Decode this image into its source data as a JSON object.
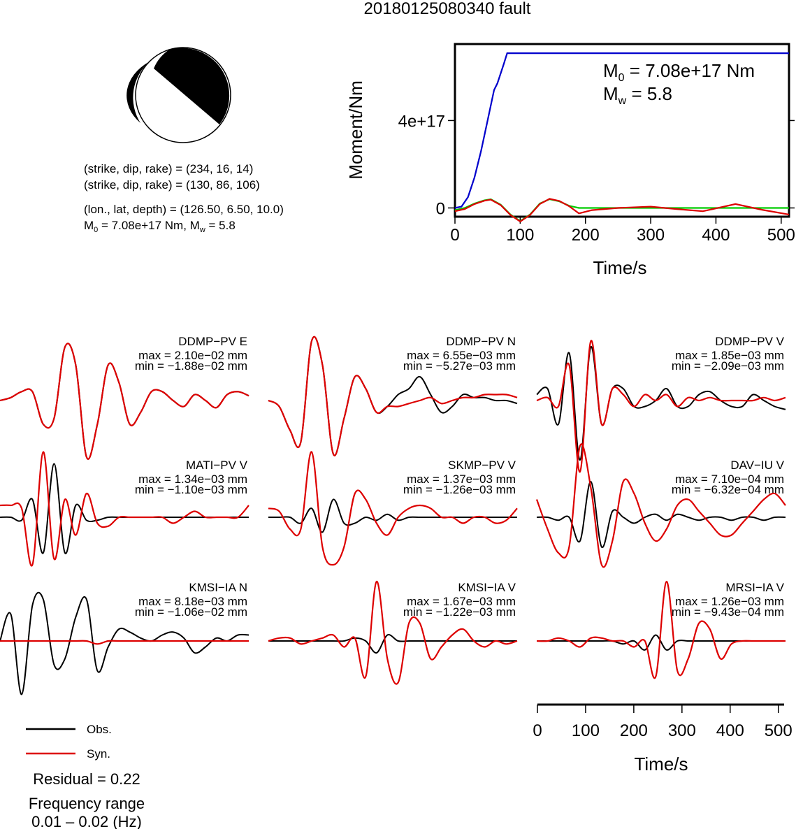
{
  "title": "20180125080340 fault",
  "focal": {
    "line1": "(strike, dip, rake) = (234, 16, 14)",
    "line2": "(strike, dip, rake) = (130, 86, 106)",
    "line3": "(lon., lat, depth) = (126.50, 6.50, 10.0)",
    "m0_prefix": "M",
    "m0_sub": "0",
    "m0_mid": " = 7.08e+17 Nm, M",
    "mw_sub": "w",
    "mw_suffix": " = 5.8"
  },
  "moment_plot": {
    "ylabel": "Moment/Nm",
    "xlabel": "Time/s",
    "m0_prefix": "M",
    "m0_sub": "0",
    "m0_value": " = 7.08e+17 Nm",
    "mw_prefix": "M",
    "mw_sub": "w",
    "mw_value": " = 5.8"
  },
  "chart_data": [
    {
      "type": "line",
      "xlabel": "Time/s",
      "ylabel": "Moment/Nm",
      "xlim": [
        0,
        512
      ],
      "ylim": [
        -4e+16,
        7.5e+17
      ],
      "xticks": [
        0,
        100,
        200,
        300,
        400,
        500
      ],
      "yticks": [
        {
          "value": 0,
          "label": "0"
        },
        {
          "value": 4e+17,
          "label": "4e+17"
        }
      ],
      "series": [
        {
          "color": "#0000cc",
          "x": [
            0,
            10,
            20,
            30,
            40,
            50,
            60,
            65,
            75,
            80,
            512
          ],
          "y": [
            0,
            6000000000000000.0,
            5e+16,
            1.4e+17,
            2.6e+17,
            4e+17,
            5.4e+17,
            5.7e+17,
            6.6e+17,
            7.08e+17,
            7.08e+17
          ]
        },
        {
          "color": "#00cc00",
          "x": [
            0,
            15,
            30,
            45,
            55,
            70,
            85,
            100,
            115,
            130,
            145,
            160,
            175,
            190,
            210,
            250,
            300,
            350,
            400,
            450,
            512
          ],
          "y": [
            -1e+16,
            0,
            2e+16,
            3.5e+16,
            4e+16,
            1.5e+16,
            -3e+16,
            -6e+16,
            -3e+16,
            2e+16,
            4e+16,
            3e+16,
            1e+16,
            0,
            0,
            0,
            0,
            0,
            0,
            0,
            0
          ]
        },
        {
          "color": "#dd0000",
          "x": [
            0,
            15,
            30,
            45,
            55,
            70,
            85,
            100,
            115,
            130,
            145,
            160,
            175,
            190,
            210,
            250,
            300,
            340,
            380,
            430,
            470,
            512
          ],
          "y": [
            -1.5e+16,
            -5000000000000000.0,
            1.8e+16,
            3.3e+16,
            3.8e+16,
            1.3e+16,
            -3.2e+16,
            -6.2e+16,
            -3.2e+16,
            1.8e+16,
            4.2e+16,
            3.2e+16,
            8000000000000000.0,
            -2.5e+16,
            -1e+16,
            0,
            6000000000000000.0,
            -5000000000000000.0,
            -1.5e+16,
            1.8e+16,
            -8000000000000000.0,
            -3e+16
          ]
        }
      ]
    },
    {
      "type": "line",
      "xlabel": "Time/s",
      "xlim": [
        0,
        512
      ],
      "xticks": [
        0,
        100,
        200,
        300,
        400,
        500
      ],
      "legend": [
        "Obs.",
        "Syn."
      ],
      "residual": "Residual = 0.22",
      "frequency_label": "Frequency range",
      "frequency_value": "0.01 – 0.02 (Hz)",
      "traces": [
        {
          "label": "DDMP−PV E",
          "max": "max = 2.10e−02 mm",
          "min": "min = −1.88e−02 mm",
          "obs": [
            0,
            5,
            15,
            15,
            -40,
            -30,
            90,
            60,
            -95,
            -40,
            60,
            30,
            -40,
            -20,
            15,
            15,
            0,
            -10,
            10,
            0,
            -12,
            10,
            15,
            8
          ],
          "syn": [
            0,
            5,
            15,
            15,
            -40,
            -30,
            90,
            60,
            -95,
            -40,
            60,
            30,
            -40,
            -20,
            15,
            15,
            0,
            -10,
            10,
            0,
            -12,
            10,
            15,
            8
          ]
        },
        {
          "label": "DDMP−PV N",
          "max": "max = 6.55e−03 mm",
          "min": "min = −5.27e−03 mm",
          "obs": [
            0,
            -10,
            -50,
            -70,
            100,
            60,
            -90,
            -30,
            40,
            20,
            -20,
            -10,
            10,
            20,
            40,
            10,
            -20,
            -10,
            10,
            5,
            5,
            0,
            0,
            -5
          ],
          "syn": [
            0,
            -10,
            -50,
            -70,
            100,
            60,
            -90,
            -30,
            40,
            20,
            -20,
            -10,
            -10,
            -5,
            0,
            5,
            -5,
            0,
            5,
            5,
            10,
            10,
            10,
            5
          ]
        },
        {
          "label": "DDMP−PV V",
          "max": "max = 1.85e−03 mm",
          "min": "min = −2.09e−03 mm",
          "obs": [
            10,
            20,
            -40,
            80,
            -100,
            90,
            -40,
            20,
            20,
            -10,
            -10,
            0,
            20,
            -10,
            -10,
            10,
            15,
            0,
            -10,
            -10,
            10,
            0,
            -10,
            -15
          ],
          "syn": [
            0,
            5,
            -10,
            60,
            -120,
            100,
            -40,
            20,
            10,
            -10,
            10,
            0,
            10,
            -10,
            5,
            0,
            5,
            0,
            0,
            0,
            0,
            5,
            0,
            5
          ]
        },
        {
          "label": "MATI−PV V",
          "max": "max = 1.34e−03 mm",
          "min": "min = −1.10e−03 mm",
          "obs": [
            0,
            0,
            -5,
            30,
            -60,
            90,
            -60,
            20,
            -5,
            -5,
            0,
            0,
            0,
            0,
            0,
            0,
            0,
            0,
            0,
            0,
            0,
            0,
            0,
            0
          ],
          "syn": [
            20,
            20,
            15,
            -80,
            110,
            -70,
            30,
            -30,
            40,
            -10,
            -15,
            0,
            0,
            0,
            0,
            0,
            -10,
            0,
            10,
            0,
            0,
            0,
            0,
            20
          ]
        },
        {
          "label": "SKMP−PV V",
          "max": "max = 1.37e−03 mm",
          "min": "min = −1.26e−03 mm",
          "obs": [
            0,
            0,
            0,
            -10,
            15,
            -25,
            30,
            -10,
            -10,
            0,
            -5,
            5,
            -5,
            0,
            0,
            0,
            0,
            0,
            0,
            0,
            0,
            0,
            0,
            0
          ],
          "syn": [
            15,
            10,
            -20,
            -20,
            110,
            -50,
            -80,
            -50,
            40,
            30,
            -10,
            -30,
            0,
            15,
            20,
            15,
            0,
            0,
            -10,
            0,
            0,
            -10,
            -5,
            15
          ]
        },
        {
          "label": "DAV−IU V",
          "max": "max = 7.10e−04 mm",
          "min": "min = −6.32e−04 mm",
          "obs": [
            0,
            0,
            -5,
            0,
            -40,
            60,
            -50,
            10,
            0,
            -10,
            0,
            5,
            -5,
            5,
            0,
            -5,
            0,
            0,
            -5,
            0,
            0,
            -5,
            0,
            0
          ],
          "syn": [
            30,
            -20,
            -60,
            -50,
            120,
            50,
            -80,
            -40,
            60,
            40,
            -10,
            -40,
            -20,
            20,
            30,
            10,
            -10,
            -30,
            -30,
            -10,
            10,
            30,
            40,
            20
          ]
        },
        {
          "label": "KMSI−IA N",
          "max": "max = 8.18e−03 mm",
          "min": "min = −1.06e−02 mm",
          "obs": [
            0,
            45,
            -90,
            60,
            70,
            -40,
            -30,
            40,
            70,
            -50,
            -10,
            20,
            15,
            5,
            0,
            10,
            15,
            5,
            -20,
            -10,
            5,
            0,
            10,
            10
          ],
          "syn": [
            0,
            0,
            0,
            0,
            0,
            0,
            0,
            0,
            0,
            -5,
            0,
            0,
            0,
            0,
            0,
            0,
            0,
            0,
            0,
            0,
            0,
            0,
            0,
            0
          ],
          "syn_tail": [
            0,
            0,
            0,
            0,
            0,
            0,
            0,
            0,
            0,
            0,
            0,
            0,
            0,
            0,
            0,
            0,
            0,
            0,
            0,
            0,
            0,
            0,
            0,
            0
          ]
        },
        {
          "label": "KMSI−IA V",
          "max": "max = 1.67e−03 mm",
          "min": "min = −1.22e−03 mm",
          "obs": [
            0,
            0,
            0,
            0,
            0,
            0,
            0,
            0,
            5,
            0,
            -20,
            10,
            0,
            0,
            0,
            0,
            0,
            0,
            0,
            0,
            0,
            0,
            0,
            0
          ],
          "syn": [
            0,
            5,
            5,
            -5,
            0,
            5,
            10,
            -10,
            5,
            -60,
            100,
            -30,
            -70,
            30,
            30,
            -30,
            -10,
            10,
            20,
            0,
            -10,
            0,
            -5,
            0
          ]
        },
        {
          "label": "MRSI−IA V",
          "max": "max = 1.26e−03 mm",
          "min": "min = −9.43e−04 mm",
          "obs": [
            0,
            0,
            0,
            0,
            0,
            0,
            0,
            0,
            -5,
            0,
            -15,
            10,
            -15,
            0,
            0,
            0,
            0,
            0,
            0,
            0,
            0,
            0,
            0,
            0
          ],
          "syn": [
            0,
            0,
            5,
            0,
            -10,
            5,
            5,
            0,
            0,
            -10,
            0,
            -60,
            100,
            -50,
            -30,
            30,
            20,
            -30,
            -5,
            0,
            0,
            0,
            0,
            0
          ]
        }
      ]
    }
  ],
  "bottom_axis": {
    "xlabel": "Time/s"
  }
}
